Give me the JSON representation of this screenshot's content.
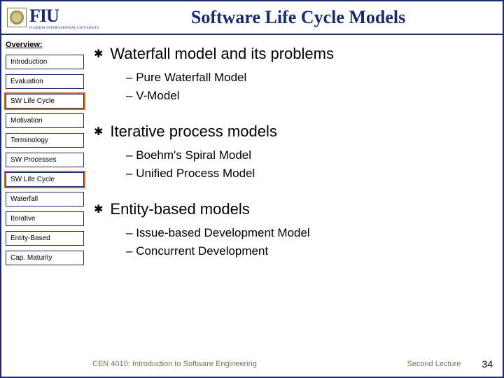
{
  "header": {
    "logo_letters": "FIU",
    "logo_sub": "FLORIDA INTERNATIONAL UNIVERSITY",
    "title": "Software Life Cycle Models"
  },
  "sidebar": {
    "heading": "Overview:",
    "items": [
      {
        "label": "Introduction",
        "highlight": false
      },
      {
        "label": "Evaluation",
        "highlight": false
      },
      {
        "label": "SW Life Cycle",
        "highlight": true
      },
      {
        "label": "Motivation",
        "highlight": false
      },
      {
        "label": "Terminology",
        "highlight": false
      },
      {
        "label": "SW Processes",
        "highlight": false
      },
      {
        "label": "SW Life Cycle",
        "highlight": true
      },
      {
        "label": "Waterfall",
        "highlight": false
      },
      {
        "label": "Iterative",
        "highlight": false
      },
      {
        "label": "Entity-Based",
        "highlight": false
      },
      {
        "label": "Cap. Maturity",
        "highlight": false
      }
    ]
  },
  "content": {
    "groups": [
      {
        "title": "Waterfall model and its problems",
        "subs": [
          "Pure Waterfall Model",
          "V-Model"
        ]
      },
      {
        "title": "Iterative process models",
        "subs": [
          "Boehm's Spiral Model",
          "Unified Process Model"
        ]
      },
      {
        "title": "Entity-based models",
        "subs": [
          "Issue-based Development Model",
          "Concurrent Development"
        ]
      }
    ]
  },
  "footer": {
    "left": "CEN 4010: Introduction to Software Engineering",
    "mid": "Second Lecture",
    "page": "34"
  },
  "colors": {
    "border": "#1a2a6c",
    "highlight": "#d46a1a",
    "footer_text": "#7a7250"
  },
  "typography": {
    "title_fontsize": 26,
    "main_bullet_fontsize": 22,
    "sub_bullet_fontsize": 17,
    "sidebar_fontsize": 10,
    "footer_fontsize": 11
  }
}
